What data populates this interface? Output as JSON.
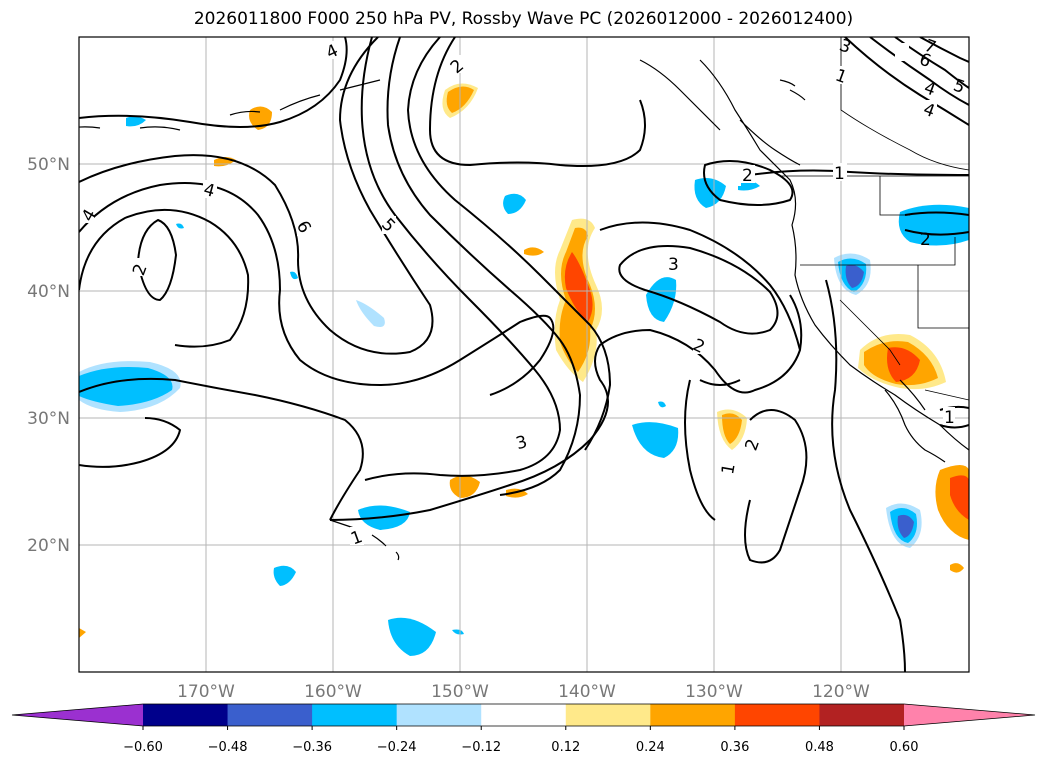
{
  "title": "2026011800 F000 250 hPa PV, Rossby Wave PC (2026012000 - 2026012400)",
  "axes": {
    "lat_ticks": [
      "20°N",
      "30°N",
      "40°N",
      "50°N"
    ],
    "lon_ticks": [
      "170°W",
      "160°W",
      "150°W",
      "140°W",
      "130°W",
      "120°W"
    ],
    "lon_range": [
      -180,
      -110
    ],
    "lat_range": [
      10,
      60
    ],
    "grid": true
  },
  "colorbar": {
    "orientation": "horizontal",
    "extend": "both",
    "levels": [
      "−0.60",
      "−0.48",
      "−0.36",
      "−0.24",
      "−0.12",
      "0.12",
      "0.24",
      "0.36",
      "0.48",
      "0.60"
    ],
    "colors": [
      "#9b30d0",
      "#00008b",
      "#3a5fcd",
      "#00bfff",
      "#b0e2ff",
      "#ffffff",
      "#ffe98a",
      "#ffa500",
      "#ff4500",
      "#b22222",
      "#ff82ab"
    ]
  },
  "contour_labels": [
    "4",
    "4",
    "2",
    "4",
    "6",
    "5",
    "2",
    "4",
    "6",
    "3",
    "7",
    "5",
    "4",
    "1",
    "2",
    "2",
    "1",
    "3",
    "2",
    "3",
    "1",
    "2",
    "1",
    "1"
  ]
}
